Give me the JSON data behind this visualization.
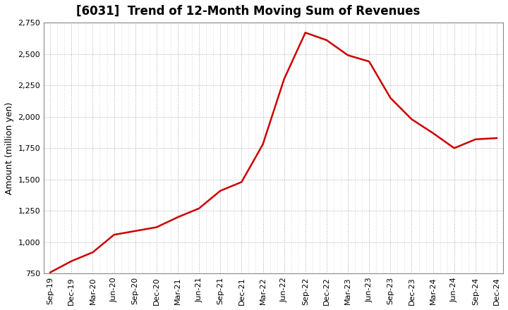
{
  "title": "[6031]  Trend of 12-Month Moving Sum of Revenues",
  "ylabel": "Amount (million yen)",
  "line_color": "#CC0000",
  "background_color": "#FFFFFF",
  "plot_bg_color": "#FFFFFF",
  "grid_color": "#AAAAAA",
  "ylim": [
    750,
    2750
  ],
  "yticks": [
    750,
    1000,
    1250,
    1500,
    1750,
    2000,
    2250,
    2500,
    2750
  ],
  "x_labels": [
    "Sep-19",
    "Dec-19",
    "Mar-20",
    "Jun-20",
    "Sep-20",
    "Dec-20",
    "Mar-21",
    "Jun-21",
    "Sep-21",
    "Dec-21",
    "Mar-22",
    "Jun-22",
    "Sep-22",
    "Dec-22",
    "Mar-23",
    "Jun-23",
    "Sep-23",
    "Dec-23",
    "Mar-24",
    "Jun-24",
    "Sep-24",
    "Dec-24"
  ],
  "y_values": [
    760,
    850,
    920,
    1060,
    1090,
    1120,
    1200,
    1270,
    1410,
    1480,
    1780,
    2300,
    2670,
    2610,
    2490,
    2440,
    2150,
    1980,
    1870,
    1750,
    1820,
    1830
  ],
  "title_fontsize": 12,
  "ylabel_fontsize": 9,
  "tick_fontsize": 8
}
